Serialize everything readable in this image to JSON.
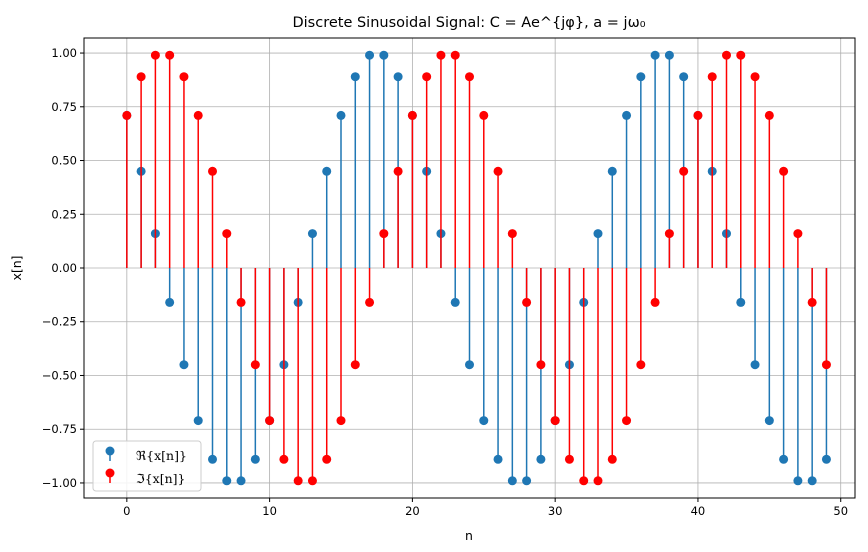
{
  "chart_data": {
    "type": "stem",
    "title": "Discrete Sinusoidal Signal: C = Ae^{jφ}, a = jω₀",
    "xlabel": "n",
    "ylabel": "x[n]",
    "xlim": [
      -3,
      51
    ],
    "ylim": [
      -1.07,
      1.07
    ],
    "xticks": [
      0,
      10,
      20,
      30,
      40,
      50
    ],
    "yticks": [
      -1.0,
      -0.75,
      -0.5,
      -0.25,
      0.0,
      0.25,
      0.5,
      0.75,
      1.0
    ],
    "grid": true,
    "legend_position": "lower-left",
    "colors": {
      "real": "#1f77b4",
      "imag": "#ff0000"
    },
    "x": [
      0,
      1,
      2,
      3,
      4,
      5,
      6,
      7,
      8,
      9,
      10,
      11,
      12,
      13,
      14,
      15,
      16,
      17,
      18,
      19,
      20,
      21,
      22,
      23,
      24,
      25,
      26,
      27,
      28,
      29,
      30,
      31,
      32,
      33,
      34,
      35,
      36,
      37,
      38,
      39,
      40,
      41,
      42,
      43,
      44,
      45,
      46,
      47,
      48,
      49
    ],
    "series": [
      {
        "name": "ℜ{x[n]}",
        "color": "#1f77b4",
        "values": [
          0.71,
          0.45,
          0.16,
          -0.16,
          -0.45,
          -0.71,
          -0.89,
          -0.99,
          -0.99,
          -0.89,
          -0.71,
          -0.45,
          -0.16,
          0.16,
          0.45,
          0.71,
          0.89,
          0.99,
          0.99,
          0.89,
          0.71,
          0.45,
          0.16,
          -0.16,
          -0.45,
          -0.71,
          -0.89,
          -0.99,
          -0.99,
          -0.89,
          -0.71,
          -0.45,
          -0.16,
          0.16,
          0.45,
          0.71,
          0.89,
          0.99,
          0.99,
          0.89,
          0.71,
          0.45,
          0.16,
          -0.16,
          -0.45,
          -0.71,
          -0.89,
          -0.99,
          -0.99,
          -0.89
        ]
      },
      {
        "name": "ℑ{x[n]}",
        "color": "#ff0000",
        "values": [
          0.71,
          0.89,
          0.99,
          0.99,
          0.89,
          0.71,
          0.45,
          0.16,
          -0.16,
          -0.45,
          -0.71,
          -0.89,
          -0.99,
          -0.99,
          -0.89,
          -0.71,
          -0.45,
          -0.16,
          0.16,
          0.45,
          0.71,
          0.89,
          0.99,
          0.99,
          0.89,
          0.71,
          0.45,
          0.16,
          -0.16,
          -0.45,
          -0.71,
          -0.89,
          -0.99,
          -0.99,
          -0.89,
          -0.71,
          -0.45,
          -0.16,
          0.16,
          0.45,
          0.71,
          0.89,
          0.99,
          0.99,
          0.89,
          0.71,
          0.45,
          0.16,
          -0.16,
          -0.45
        ]
      }
    ]
  }
}
